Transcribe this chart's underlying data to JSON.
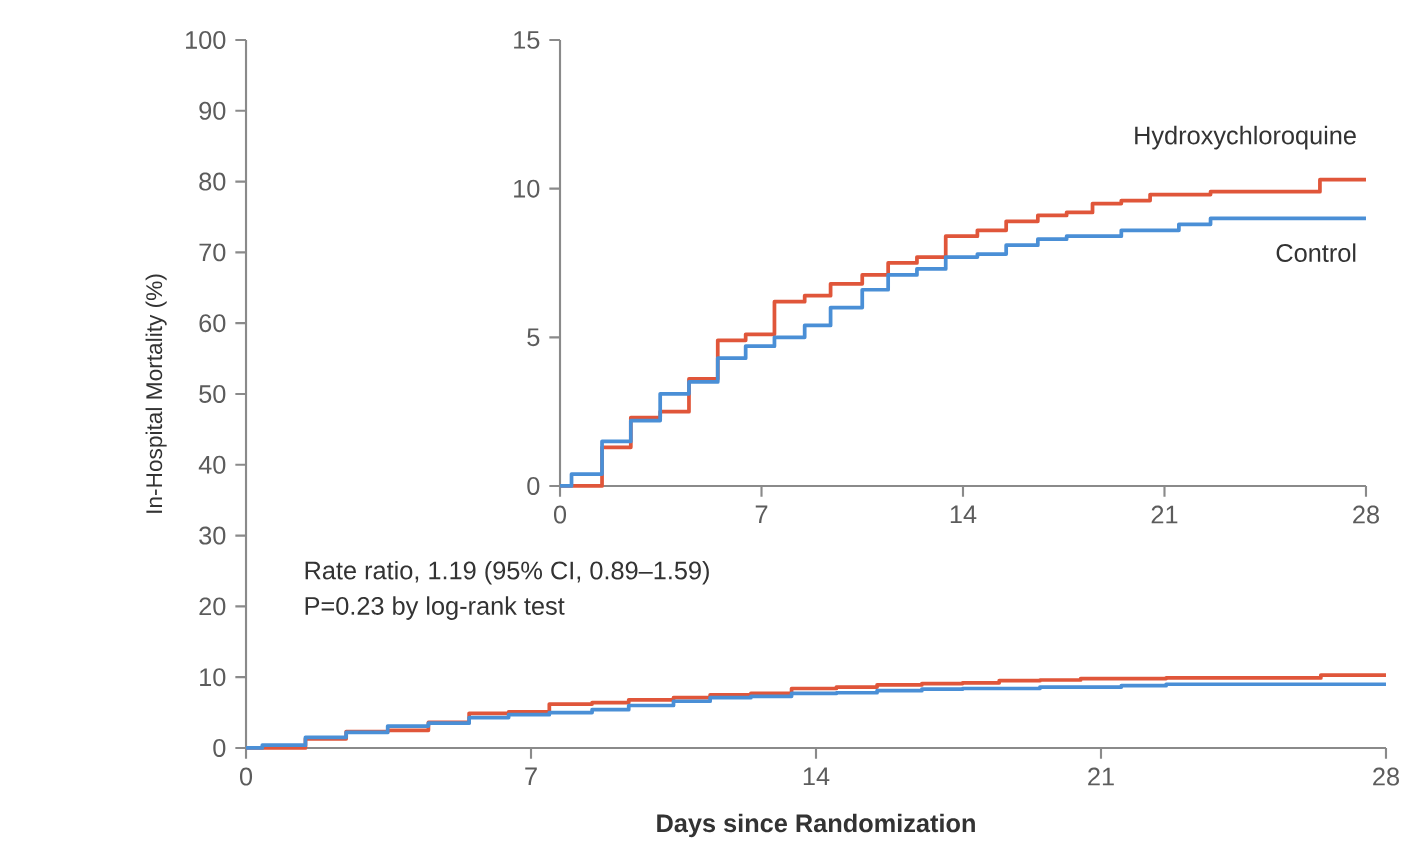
{
  "chart_data": [
    {
      "type": "step",
      "xlabel": "Days since Randomization",
      "ylabel": "In-Hospital Mortality (%)",
      "xlim": [
        0,
        28
      ],
      "ylim": [
        0,
        100
      ],
      "xticks": [
        0,
        7,
        14,
        21,
        28
      ],
      "yticks": [
        0,
        10,
        20,
        30,
        40,
        50,
        60,
        70,
        80,
        90,
        100
      ],
      "annotations": [
        "Rate ratio, 1.19 (95% CI, 0.89–1.59)",
        "P=0.23 by log-rank test"
      ],
      "series": [
        {
          "color": "#e0563a",
          "x": [
            0,
            1.46,
            2.46,
            3.48,
            4.48,
            5.48,
            6.45,
            7.45,
            8.5,
            9.4,
            10.5,
            11.4,
            12.4,
            13.4,
            14.5,
            15.5,
            16.6,
            17.6,
            18.5,
            19.5,
            20.5,
            22.6,
            26.4,
            28
          ],
          "values": [
            0,
            1.3,
            2.3,
            2.5,
            3.6,
            4.9,
            5.1,
            6.2,
            6.4,
            6.8,
            7.1,
            7.5,
            7.7,
            8.4,
            8.6,
            8.9,
            9.1,
            9.2,
            9.5,
            9.6,
            9.8,
            9.9,
            10.3,
            10.3
          ]
        },
        {
          "color": "#4a8fd6",
          "x": [
            0,
            0.4,
            1.46,
            2.46,
            3.48,
            4.48,
            5.48,
            6.45,
            7.45,
            8.5,
            9.4,
            10.5,
            11.4,
            12.4,
            13.4,
            14.5,
            15.5,
            16.6,
            17.6,
            19.5,
            21.5,
            22.6,
            28
          ],
          "values": [
            0,
            0.4,
            1.5,
            2.2,
            3.1,
            3.5,
            4.3,
            4.7,
            5.0,
            5.4,
            6.0,
            6.6,
            7.1,
            7.3,
            7.7,
            7.8,
            8.1,
            8.3,
            8.4,
            8.6,
            8.8,
            9.0,
            9.0
          ]
        }
      ]
    },
    {
      "type": "step",
      "xlim": [
        0,
        28
      ],
      "ylim": [
        0,
        15
      ],
      "xticks": [
        0,
        7,
        14,
        21,
        28
      ],
      "yticks": [
        0,
        5,
        10,
        15
      ],
      "series": [
        {
          "name": "Hydroxychloroquine",
          "color": "#e0563a",
          "x": [
            0,
            1.46,
            2.46,
            3.48,
            4.48,
            5.48,
            6.45,
            7.45,
            8.5,
            9.4,
            10.5,
            11.4,
            12.4,
            13.4,
            14.5,
            15.5,
            16.6,
            17.6,
            18.5,
            19.5,
            20.5,
            22.6,
            26.4,
            28
          ],
          "values": [
            0,
            1.3,
            2.3,
            2.5,
            3.6,
            4.9,
            5.1,
            6.2,
            6.4,
            6.8,
            7.1,
            7.5,
            7.7,
            8.4,
            8.6,
            8.9,
            9.1,
            9.2,
            9.5,
            9.6,
            9.8,
            9.9,
            10.3,
            10.3
          ]
        },
        {
          "name": "Control",
          "color": "#4a8fd6",
          "x": [
            0,
            0.4,
            1.46,
            2.46,
            3.48,
            4.48,
            5.48,
            6.45,
            7.45,
            8.5,
            9.4,
            10.5,
            11.4,
            12.4,
            13.4,
            14.5,
            15.5,
            16.6,
            17.6,
            19.5,
            21.5,
            22.6,
            28
          ],
          "values": [
            0,
            0.4,
            1.5,
            2.2,
            3.1,
            3.5,
            4.3,
            4.7,
            5.0,
            5.4,
            6.0,
            6.6,
            7.1,
            7.3,
            7.7,
            7.8,
            8.1,
            8.3,
            8.4,
            8.6,
            8.8,
            9.0,
            9.0
          ]
        }
      ]
    }
  ]
}
